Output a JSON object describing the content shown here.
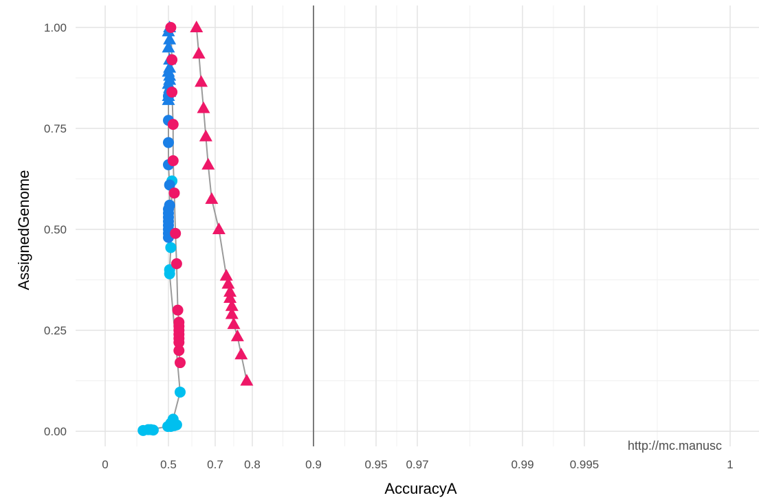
{
  "chart_data": {
    "type": "scatter",
    "xlabel": "AccuracyA",
    "ylabel": "AssignedGenome",
    "x_scale": "nonlinear (tick-position mapped)",
    "x_ticks": [
      "0",
      "0.5",
      "0.7",
      "0.8",
      "0.9",
      "0.95",
      "0.97",
      "0.99",
      "0.995",
      "1"
    ],
    "x_tick_values": [
      0,
      0.5,
      0.7,
      0.8,
      0.9,
      0.95,
      0.97,
      0.99,
      0.995,
      1
    ],
    "y_ticks": [
      "0.00",
      "0.25",
      "0.50",
      "0.75",
      "1.00"
    ],
    "y_tick_values": [
      0,
      0.25,
      0.5,
      0.75,
      1.0
    ],
    "ylim": [
      0,
      1
    ],
    "reference_line_x": 0.9,
    "grid": true,
    "legend": "none",
    "series": [
      {
        "color": "#00BFEF",
        "marker": "circle",
        "points": [
          [
            0.3,
            0.002
          ],
          [
            0.34,
            0.004
          ],
          [
            0.36,
            0.004
          ],
          [
            0.38,
            0.003
          ],
          [
            0.495,
            0.012
          ],
          [
            0.51,
            0.012
          ],
          [
            0.525,
            0.014
          ],
          [
            0.535,
            0.016
          ],
          [
            0.51,
            0.02
          ],
          [
            0.52,
            0.03
          ],
          [
            0.55,
            0.097
          ],
          [
            0.505,
            0.39
          ],
          [
            0.505,
            0.4
          ],
          [
            0.51,
            0.455
          ],
          [
            0.515,
            0.62
          ]
        ]
      },
      {
        "color": "#1A7FE6",
        "marker": "circle",
        "points": [
          [
            0.5,
            0.48
          ],
          [
            0.5,
            0.49
          ],
          [
            0.5,
            0.5
          ],
          [
            0.5,
            0.51
          ],
          [
            0.5,
            0.52
          ],
          [
            0.5,
            0.53
          ],
          [
            0.5,
            0.54
          ],
          [
            0.5,
            0.55
          ],
          [
            0.505,
            0.56
          ],
          [
            0.505,
            0.61
          ],
          [
            0.5,
            0.66
          ],
          [
            0.5,
            0.715
          ],
          [
            0.5,
            0.77
          ],
          [
            0.5,
            0.83
          ],
          [
            0.505,
            0.84
          ]
        ]
      },
      {
        "color": "#1A7FE6",
        "marker": "triangle",
        "points": [
          [
            0.5,
            0.82
          ],
          [
            0.5,
            0.83
          ],
          [
            0.505,
            0.84
          ],
          [
            0.505,
            0.85
          ],
          [
            0.5,
            0.86
          ],
          [
            0.505,
            0.87
          ],
          [
            0.505,
            0.88
          ],
          [
            0.5,
            0.89
          ],
          [
            0.505,
            0.9
          ],
          [
            0.505,
            0.92
          ],
          [
            0.5,
            0.95
          ],
          [
            0.505,
            0.97
          ],
          [
            0.5,
            0.99
          ],
          [
            0.505,
            1.0
          ]
        ]
      },
      {
        "color": "#EE1767",
        "marker": "circle",
        "points": [
          [
            0.51,
            1.0
          ],
          [
            0.515,
            0.92
          ],
          [
            0.515,
            0.84
          ],
          [
            0.52,
            0.76
          ],
          [
            0.52,
            0.67
          ],
          [
            0.525,
            0.59
          ],
          [
            0.53,
            0.49
          ],
          [
            0.535,
            0.415
          ],
          [
            0.54,
            0.3
          ],
          [
            0.545,
            0.27
          ],
          [
            0.545,
            0.26
          ],
          [
            0.545,
            0.25
          ],
          [
            0.545,
            0.24
          ],
          [
            0.545,
            0.23
          ],
          [
            0.545,
            0.22
          ],
          [
            0.545,
            0.2
          ],
          [
            0.55,
            0.17
          ]
        ]
      },
      {
        "color": "#EE1767",
        "marker": "triangle",
        "points": [
          [
            0.62,
            1.0
          ],
          [
            0.63,
            0.935
          ],
          [
            0.64,
            0.865
          ],
          [
            0.65,
            0.8
          ],
          [
            0.66,
            0.73
          ],
          [
            0.67,
            0.66
          ],
          [
            0.685,
            0.575
          ],
          [
            0.71,
            0.5
          ],
          [
            0.73,
            0.385
          ],
          [
            0.735,
            0.365
          ],
          [
            0.74,
            0.345
          ],
          [
            0.74,
            0.33
          ],
          [
            0.745,
            0.31
          ],
          [
            0.745,
            0.29
          ],
          [
            0.75,
            0.265
          ],
          [
            0.76,
            0.235
          ],
          [
            0.77,
            0.19
          ],
          [
            0.785,
            0.125
          ]
        ]
      }
    ],
    "annotation": "http://mc.manusc"
  }
}
